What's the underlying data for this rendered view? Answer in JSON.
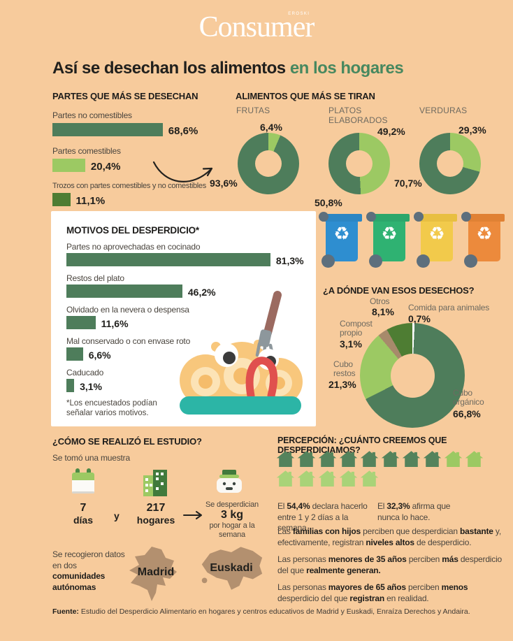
{
  "palette": {
    "bg": "#f7cb9c",
    "dark_green": "#4e7d5b",
    "light_green": "#9cc963",
    "forest_green": "#4e7d33",
    "title_green": "#47885f",
    "brown": "#a78a6b",
    "map_brown": "#b3906f",
    "white": "#ffffff"
  },
  "header": {
    "logo": "Consumer",
    "logo_super": "EROSKI"
  },
  "title": {
    "black": "Así se desechan los alimentos ",
    "green": "en los hogares"
  },
  "partes": {
    "heading": "PARTES QUE MÁS SE DESECHAN",
    "bars": [
      {
        "label": "Partes no comestibles",
        "value": "68,6%",
        "pct": 68.6,
        "color": "#4e7d5b"
      },
      {
        "label": "Partes comestibles",
        "value": "20,4%",
        "pct": 20.4,
        "color": "#9cc963"
      },
      {
        "label": "Trozos con partes comestibles y no comestibles",
        "value": "11,1%",
        "pct": 11.1,
        "color": "#4e7d33"
      }
    ]
  },
  "alimentos": {
    "heading": "ALIMENTOS QUE MÁS SE TIRAN",
    "donuts": [
      {
        "label": "FRUTAS",
        "light_value": "6,4%",
        "light_pct": 6.4,
        "dark_value": "93,6%"
      },
      {
        "label": "PLATOS ELABORADOS",
        "light_value": "49,2%",
        "light_pct": 49.2,
        "dark_value": "50,8%"
      },
      {
        "label": "VERDURAS",
        "light_value": "29,3%",
        "light_pct": 29.3,
        "dark_value": "70,7%"
      }
    ]
  },
  "motivos": {
    "heading": "MOTIVOS DEL DESPERDICIO*",
    "bars": [
      {
        "label": "Partes no aprovechadas en cocinado",
        "value": "81,3%",
        "pct": 81.3,
        "color": "#4e7d5b"
      },
      {
        "label": "Restos del plato",
        "value": "46,2%",
        "pct": 46.2,
        "color": "#4e7d5b"
      },
      {
        "label": "Olvidado en la nevera o despensa",
        "value": "11,6%",
        "pct": 11.6,
        "color": "#4e7d5b"
      },
      {
        "label": "Mal conservado o con envase roto",
        "value": "6,6%",
        "pct": 6.6,
        "color": "#4e7d5b"
      },
      {
        "label": "Caducado",
        "value": "3,1%",
        "pct": 3.1,
        "color": "#4e7d5b"
      }
    ],
    "footnote_1": "*Los encuestados podían",
    "footnote_2": "señalar varios motivos."
  },
  "bins": {
    "glyph": "♻",
    "items": [
      {
        "name": "blue",
        "body": "#2e8ed0",
        "lid": "#2c86c4"
      },
      {
        "name": "green",
        "body": "#2fb272",
        "lid": "#2ca76b"
      },
      {
        "name": "yellow",
        "body": "#f2ca4b",
        "lid": "#e8bf41"
      },
      {
        "name": "orange",
        "body": "#ec8a3c",
        "lid": "#e08134"
      }
    ]
  },
  "destino": {
    "heading": "¿A DÓNDE VAN ESOS DESECHOS?",
    "slices": [
      {
        "label": "Comida para animales",
        "value": "0,7%",
        "pct": 0.7,
        "color": "#ffffff"
      },
      {
        "label": "Cubo orgánico",
        "value": "66,8%",
        "pct": 66.8,
        "color": "#4e7d5b"
      },
      {
        "label": "Cubo restos",
        "value": "21,3%",
        "pct": 21.3,
        "color": "#9cc963"
      },
      {
        "label": "Compost propio",
        "value": "3,1%",
        "pct": 3.1,
        "color": "#a78a6b"
      },
      {
        "label": "Otros",
        "value": "8,1%",
        "pct": 8.1,
        "color": "#4e7d33"
      }
    ]
  },
  "estudio": {
    "heading": "¿CÓMO SE REALIZÓ EL ESTUDIO?",
    "intro": "Se tomó una muestra",
    "dias_num": "7",
    "dias_label": "días",
    "conjunction": "y",
    "hogares_num": "217",
    "hogares_label": "hogares",
    "result_pre": "Se desperdician",
    "result_value": "3 kg",
    "result_post": "por hogar a la semana",
    "recogida_segments": [
      {
        "t": "Se recogieron datos en dos ",
        "b": 0
      },
      {
        "t": "comunidades autónomas",
        "b": 1
      }
    ],
    "maps": [
      {
        "name": "Madrid"
      },
      {
        "name": "Euskadi"
      }
    ]
  },
  "percepcion": {
    "heading": "PERCEPCIÓN: ¿CUÁNTO CREEMOS QUE DESPERDICIAMOS?",
    "house_rows": [
      [
        {
          "n": 8,
          "color": "#54835c"
        },
        {
          "n": 2,
          "color": "#9cc963"
        }
      ],
      [
        {
          "n": 5,
          "color": "#a9d378"
        }
      ]
    ],
    "stats": [
      {
        "segments": [
          {
            "t": "El ",
            "b": 0
          },
          {
            "t": "54,4%",
            "b": 1
          },
          {
            "t": " declara hacerlo entre 1 y 2 días a la semana.",
            "b": 0
          }
        ]
      },
      {
        "segments": [
          {
            "t": "El ",
            "b": 0
          },
          {
            "t": "32,3%",
            "b": 1
          },
          {
            "t": " afirma que nunca lo hace.",
            "b": 0
          }
        ]
      }
    ],
    "paragraphs": [
      {
        "segments": [
          {
            "t": "Las ",
            "b": 0
          },
          {
            "t": "familias con hijos",
            "b": 1
          },
          {
            "t": " perciben que desperdician ",
            "b": 0
          },
          {
            "t": "bastante",
            "b": 1
          },
          {
            "t": " y, efectivamente, registran ",
            "b": 0
          },
          {
            "t": "niveles altos",
            "b": 1
          },
          {
            "t": " de desperdicio.",
            "b": 0
          }
        ]
      },
      {
        "segments": [
          {
            "t": "Las personas ",
            "b": 0
          },
          {
            "t": "menores de 35 años",
            "b": 1
          },
          {
            "t": " perciben ",
            "b": 0
          },
          {
            "t": "más",
            "b": 1
          },
          {
            "t": " desperdicio del que ",
            "b": 0
          },
          {
            "t": "realmente generan.",
            "b": 1
          }
        ]
      },
      {
        "segments": [
          {
            "t": "Las personas ",
            "b": 0
          },
          {
            "t": "mayores de 65 años",
            "b": 1
          },
          {
            "t": " perciben ",
            "b": 0
          },
          {
            "t": "menos",
            "b": 1
          },
          {
            "t": " desperdicio del que ",
            "b": 0
          },
          {
            "t": "registran",
            "b": 1
          },
          {
            "t": " en realidad.",
            "b": 0
          }
        ]
      }
    ]
  },
  "fuente": {
    "label": "Fuente:",
    "text": " Estudio del Desperdicio Alimentario en hogares y centros educativos de Madrid y Euskadi, Enraíza Derechos y Andaira."
  },
  "chart_data": [
    {
      "type": "bar",
      "title": "PARTES QUE MÁS SE DESECHAN",
      "categories": [
        "Partes no comestibles",
        "Partes comestibles",
        "Trozos con partes comestibles y no comestibles"
      ],
      "values": [
        68.6,
        20.4,
        11.1
      ],
      "unit": "%"
    },
    {
      "type": "pie",
      "title": "FRUTAS",
      "values": [
        6.4,
        93.6
      ],
      "unit": "%"
    },
    {
      "type": "pie",
      "title": "PLATOS ELABORADOS",
      "values": [
        49.2,
        50.8
      ],
      "unit": "%"
    },
    {
      "type": "pie",
      "title": "VERDURAS",
      "values": [
        29.3,
        70.7
      ],
      "unit": "%"
    },
    {
      "type": "bar",
      "title": "MOTIVOS DEL DESPERDICIO*",
      "categories": [
        "Partes no aprovechadas en cocinado",
        "Restos del plato",
        "Olvidado en la nevera o despensa",
        "Mal conservado o con envase roto",
        "Caducado"
      ],
      "values": [
        81.3,
        46.2,
        11.6,
        6.6,
        3.1
      ],
      "unit": "%"
    },
    {
      "type": "pie",
      "title": "¿A DÓNDE VAN ESOS DESECHOS?",
      "categories": [
        "Comida para animales",
        "Cubo orgánico",
        "Cubo restos",
        "Compost propio",
        "Otros"
      ],
      "values": [
        0.7,
        66.8,
        21.3,
        3.1,
        8.1
      ],
      "unit": "%"
    }
  ]
}
